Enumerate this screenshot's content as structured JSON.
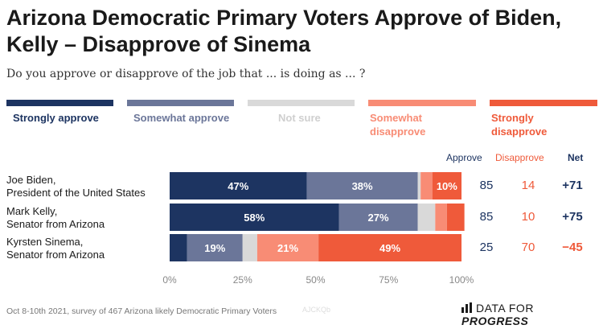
{
  "title": "Arizona Democratic Primary Voters Approve of Biden, Kelly – Disapprove of Sinema",
  "subtitle": "Do you approve or disapprove of the job that ... is doing as ... ?",
  "legend": [
    {
      "label": "Strongly approve",
      "color": "#1d3461"
    },
    {
      "label": "Somewhat approve",
      "color": "#6b7699"
    },
    {
      "label": "Not sure",
      "color": "#d9d9d9"
    },
    {
      "label": "Somewhat disapprove",
      "color": "#f88c75"
    },
    {
      "label": "Strongly disapprove",
      "color": "#ef5a3a"
    }
  ],
  "columns": {
    "approve": "Approve",
    "disapprove": "Disapprove",
    "net": "Net"
  },
  "rows": [
    {
      "name_line1": "Joe Biden,",
      "name_line2": "President of the United States",
      "approve": "85",
      "disapprove": "14",
      "net": "+71"
    },
    {
      "name_line1": "Mark Kelly,",
      "name_line2": "Senator from Arizona",
      "approve": "85",
      "disapprove": "10",
      "net": "+75"
    },
    {
      "name_line1": "Kyrsten Sinema,",
      "name_line2": "Senator from Arizona",
      "approve": "25",
      "disapprove": "70",
      "net": "−45"
    }
  ],
  "chart_data": {
    "type": "bar",
    "orientation": "horizontal",
    "stacked": true,
    "categories": [
      "Joe Biden, President of the United States",
      "Mark Kelly, Senator from Arizona",
      "Kyrsten Sinema, Senator from Arizona"
    ],
    "series": [
      {
        "name": "Strongly approve",
        "values": [
          47,
          58,
          6
        ],
        "labels": [
          "47%",
          "58%",
          ""
        ]
      },
      {
        "name": "Somewhat approve",
        "values": [
          38,
          27,
          19
        ],
        "labels": [
          "38%",
          "27%",
          "19%"
        ]
      },
      {
        "name": "Not sure",
        "values": [
          1,
          6,
          5
        ],
        "labels": [
          "",
          "",
          ""
        ]
      },
      {
        "name": "Somewhat disapprove",
        "values": [
          4,
          4,
          21
        ],
        "labels": [
          "",
          "",
          "21%"
        ]
      },
      {
        "name": "Strongly disapprove",
        "values": [
          10,
          6,
          49
        ],
        "labels": [
          "10%",
          "",
          "49%"
        ]
      }
    ],
    "colors": [
      "#1d3461",
      "#6b7699",
      "#d9d9d9",
      "#f88c75",
      "#ef5a3a"
    ],
    "label_colors": [
      "#ffffff",
      "#ffffff",
      "#555555",
      "#ffffff",
      "#ffffff"
    ],
    "xlim": [
      0,
      100
    ],
    "xticks": [
      0,
      25,
      50,
      75,
      100
    ],
    "xtick_labels": [
      "0%",
      "25%",
      "50%",
      "75%",
      "100%"
    ],
    "grid": false
  },
  "footer": "Oct 8-10th 2021, survey of 467 Arizona likely Democratic Primary Voters",
  "watermark": "AJCKQb",
  "logo": {
    "prefix": "DATA FOR ",
    "bold": "PROGRESS"
  }
}
